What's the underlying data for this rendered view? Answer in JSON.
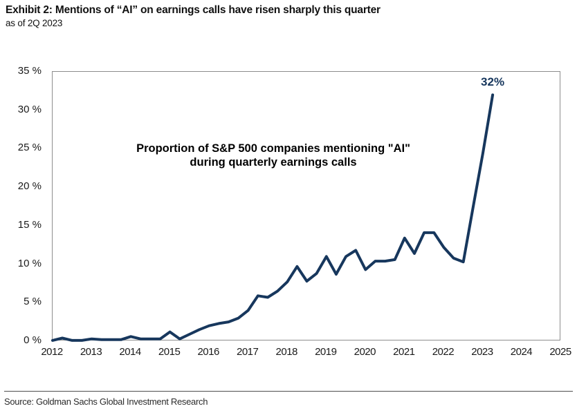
{
  "header": {
    "title": "Exhibit 2: Mentions of “AI” on earnings calls have risen sharply this quarter",
    "subtitle": "as of 2Q 2023"
  },
  "chart_data": {
    "type": "line",
    "annotation_line1": "Proportion of S&P 500 companies mentioning \"AI\"",
    "annotation_line2": "during quarterly earnings calls",
    "peak_label": "32%",
    "line_color": "#17375d",
    "border_color": "#8c8c8c",
    "ylim": [
      0,
      35
    ],
    "yticks": [
      0,
      5,
      10,
      15,
      20,
      25,
      30,
      35
    ],
    "ytick_labels": [
      "0 %",
      "5 %",
      "10 %",
      "15 %",
      "20 %",
      "25 %",
      "30 %",
      "35 %"
    ],
    "x_range_years": [
      2012,
      2025
    ],
    "xtick_labels": [
      "2012",
      "2013",
      "2014",
      "2015",
      "2016",
      "2017",
      "2018",
      "2019",
      "2020",
      "2021",
      "2022",
      "2023",
      "2024",
      "2025"
    ],
    "grid": false,
    "legend": "none",
    "quarters": [
      "2012 Q1",
      "2012 Q2",
      "2012 Q3",
      "2012 Q4",
      "2013 Q1",
      "2013 Q2",
      "2013 Q3",
      "2013 Q4",
      "2014 Q1",
      "2014 Q2",
      "2014 Q3",
      "2014 Q4",
      "2015 Q1",
      "2015 Q2",
      "2015 Q3",
      "2015 Q4",
      "2016 Q1",
      "2016 Q2",
      "2016 Q3",
      "2016 Q4",
      "2017 Q1",
      "2017 Q2",
      "2017 Q3",
      "2017 Q4",
      "2018 Q1",
      "2018 Q2",
      "2018 Q3",
      "2018 Q4",
      "2019 Q1",
      "2019 Q2",
      "2019 Q3",
      "2019 Q4",
      "2020 Q1",
      "2020 Q2",
      "2020 Q3",
      "2020 Q4",
      "2021 Q1",
      "2021 Q2",
      "2021 Q3",
      "2021 Q4",
      "2022 Q1",
      "2022 Q2",
      "2022 Q3",
      "2022 Q4",
      "2023 Q1",
      "2023 Q2"
    ],
    "values": [
      0.1,
      0.4,
      0.1,
      0.1,
      0.3,
      0.2,
      0.2,
      0.2,
      0.6,
      0.3,
      0.3,
      0.3,
      1.2,
      0.3,
      0.9,
      1.5,
      2.0,
      2.3,
      2.5,
      3.0,
      4.0,
      5.9,
      5.7,
      6.5,
      7.7,
      9.7,
      7.8,
      8.8,
      11.0,
      8.7,
      11.0,
      11.8,
      9.3,
      10.4,
      10.4,
      10.6,
      13.4,
      11.4,
      14.1,
      14.1,
      12.2,
      10.8,
      10.3,
      17.4,
      24.4,
      32
    ]
  },
  "footer": {
    "source": "Source: Goldman Sachs Global Investment Research"
  }
}
